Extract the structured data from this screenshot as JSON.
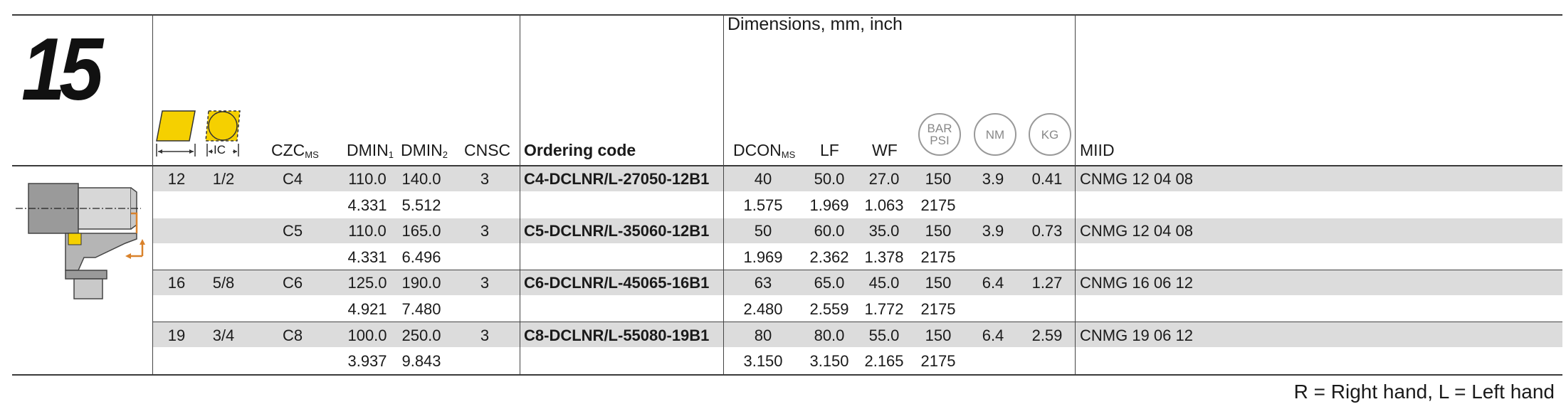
{
  "section_number": "15",
  "dimensions_title": "Dimensions, mm, inch",
  "icons": {
    "insert_l": "insert-length-icon",
    "insert_ic": "inscribed-circle-icon",
    "ic_label": "IC",
    "bar_psi": [
      "BAR",
      "PSI"
    ],
    "nm": "NM",
    "kg": "KG"
  },
  "headers": {
    "czc": "CZC",
    "czc_sub": "MS",
    "dmin1": "DMIN",
    "dmin1_sub": "1",
    "dmin2": "DMIN",
    "dmin2_sub": "2",
    "cnsc": "CNSC",
    "ordering_code": "Ordering code",
    "dcon": "DCON",
    "dcon_sub": "MS",
    "lf": "LF",
    "wf": "WF",
    "miid": "MIID"
  },
  "rows": [
    {
      "l": "12",
      "ic": "1/2",
      "czc": "C4",
      "dmin1": "110.0",
      "dmin2": "140.0",
      "cnsc": "3",
      "code": "C4-DCLNR/L-27050-12B1",
      "dcon": "40",
      "lf": "50.0",
      "wf": "27.0",
      "bar": "150",
      "nm": "3.9",
      "kg": "0.41",
      "miid": "CNMG 12 04 08"
    },
    {
      "l": "",
      "ic": "",
      "czc": "",
      "dmin1": "4.331",
      "dmin2": "5.512",
      "cnsc": "",
      "code": "",
      "dcon": "1.575",
      "lf": "1.969",
      "wf": "1.063",
      "bar": "2175",
      "nm": "",
      "kg": "",
      "miid": ""
    },
    {
      "l": "",
      "ic": "",
      "czc": "C5",
      "dmin1": "110.0",
      "dmin2": "165.0",
      "cnsc": "3",
      "code": "C5-DCLNR/L-35060-12B1",
      "dcon": "50",
      "lf": "60.0",
      "wf": "35.0",
      "bar": "150",
      "nm": "3.9",
      "kg": "0.73",
      "miid": "CNMG 12 04 08"
    },
    {
      "l": "",
      "ic": "",
      "czc": "",
      "dmin1": "4.331",
      "dmin2": "6.496",
      "cnsc": "",
      "code": "",
      "dcon": "1.969",
      "lf": "2.362",
      "wf": "1.378",
      "bar": "2175",
      "nm": "",
      "kg": "",
      "miid": ""
    },
    {
      "l": "16",
      "ic": "5/8",
      "czc": "C6",
      "dmin1": "125.0",
      "dmin2": "190.0",
      "cnsc": "3",
      "code": "C6-DCLNR/L-45065-16B1",
      "dcon": "63",
      "lf": "65.0",
      "wf": "45.0",
      "bar": "150",
      "nm": "6.4",
      "kg": "1.27",
      "miid": "CNMG 16 06 12"
    },
    {
      "l": "",
      "ic": "",
      "czc": "",
      "dmin1": "4.921",
      "dmin2": "7.480",
      "cnsc": "",
      "code": "",
      "dcon": "2.480",
      "lf": "2.559",
      "wf": "1.772",
      "bar": "2175",
      "nm": "",
      "kg": "",
      "miid": ""
    },
    {
      "l": "19",
      "ic": "3/4",
      "czc": "C8",
      "dmin1": "100.0",
      "dmin2": "250.0",
      "cnsc": "3",
      "code": "C8-DCLNR/L-55080-19B1",
      "dcon": "80",
      "lf": "80.0",
      "wf": "55.0",
      "bar": "150",
      "nm": "6.4",
      "kg": "2.59",
      "miid": "CNMG 19 06 12"
    },
    {
      "l": "",
      "ic": "",
      "czc": "",
      "dmin1": "3.937",
      "dmin2": "9.843",
      "cnsc": "",
      "code": "",
      "dcon": "3.150",
      "lf": "3.150",
      "wf": "2.165",
      "bar": "2175",
      "nm": "",
      "kg": "",
      "miid": ""
    }
  ],
  "footnote": "R = Right hand, L = Left hand",
  "colors": {
    "insert_yellow": "#f5d000",
    "accent_orange": "#d9822b",
    "row_shade": "#dcdcdc"
  }
}
